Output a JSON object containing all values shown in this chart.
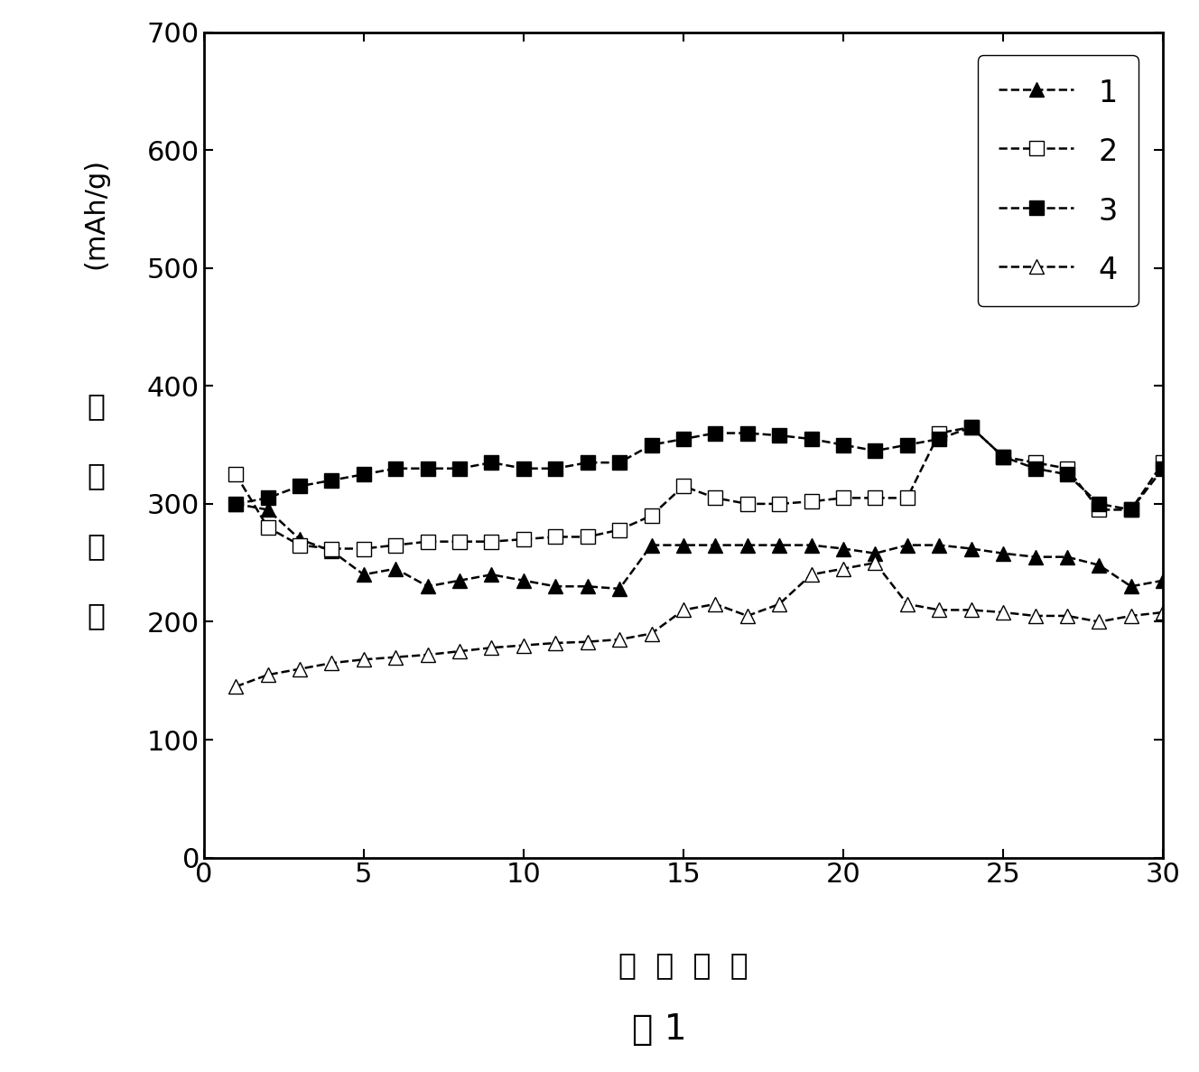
{
  "series1": {
    "label": "1",
    "x": [
      1,
      2,
      3,
      4,
      5,
      6,
      7,
      8,
      9,
      10,
      11,
      12,
      13,
      14,
      15,
      16,
      17,
      18,
      19,
      20,
      21,
      22,
      23,
      24,
      25,
      26,
      27,
      28,
      29,
      30
    ],
    "y": [
      300,
      295,
      270,
      260,
      240,
      245,
      230,
      235,
      240,
      235,
      230,
      230,
      228,
      265,
      265,
      265,
      265,
      265,
      265,
      262,
      258,
      265,
      265,
      262,
      258,
      255,
      255,
      248,
      230,
      235
    ]
  },
  "series2": {
    "label": "2",
    "x": [
      1,
      2,
      3,
      4,
      5,
      6,
      7,
      8,
      9,
      10,
      11,
      12,
      13,
      14,
      15,
      16,
      17,
      18,
      19,
      20,
      21,
      22,
      23,
      24,
      25,
      26,
      27,
      28,
      29,
      30
    ],
    "y": [
      325,
      280,
      265,
      262,
      262,
      265,
      268,
      268,
      268,
      270,
      272,
      272,
      278,
      290,
      315,
      305,
      300,
      300,
      302,
      305,
      305,
      305,
      360,
      365,
      340,
      335,
      330,
      295,
      295,
      335
    ]
  },
  "series3": {
    "label": "3",
    "x": [
      1,
      2,
      3,
      4,
      5,
      6,
      7,
      8,
      9,
      10,
      11,
      12,
      13,
      14,
      15,
      16,
      17,
      18,
      19,
      20,
      21,
      22,
      23,
      24,
      25,
      26,
      27,
      28,
      29,
      30
    ],
    "y": [
      300,
      305,
      315,
      320,
      325,
      330,
      330,
      330,
      335,
      330,
      330,
      335,
      335,
      350,
      355,
      360,
      360,
      358,
      355,
      350,
      345,
      350,
      355,
      365,
      340,
      330,
      325,
      300,
      295,
      330
    ]
  },
  "series4": {
    "label": "4",
    "x": [
      1,
      2,
      3,
      4,
      5,
      6,
      7,
      8,
      9,
      10,
      11,
      12,
      13,
      14,
      15,
      16,
      17,
      18,
      19,
      20,
      21,
      22,
      23,
      24,
      25,
      26,
      27,
      28,
      29,
      30
    ],
    "y": [
      145,
      155,
      160,
      165,
      168,
      170,
      172,
      175,
      178,
      180,
      182,
      183,
      185,
      190,
      210,
      215,
      205,
      215,
      240,
      245,
      250,
      215,
      210,
      210,
      208,
      205,
      205,
      200,
      205,
      208
    ]
  },
  "xlabel_chars": [
    "循",
    "环",
    "次",
    "数"
  ],
  "ylabel_chars": [
    "放",
    "电",
    "容",
    "量"
  ],
  "units_label": "(mAh/g)",
  "ylim": [
    0,
    700
  ],
  "xlim": [
    0,
    30
  ],
  "yticks": [
    0,
    100,
    200,
    300,
    400,
    500,
    600,
    700
  ],
  "xticks": [
    0,
    5,
    10,
    15,
    20,
    25,
    30
  ],
  "figure_label": "图 1",
  "background_color": "#ffffff",
  "tick_fontsize": 22,
  "label_fontsize": 24,
  "legend_fontsize": 24,
  "fig_label_fontsize": 28
}
